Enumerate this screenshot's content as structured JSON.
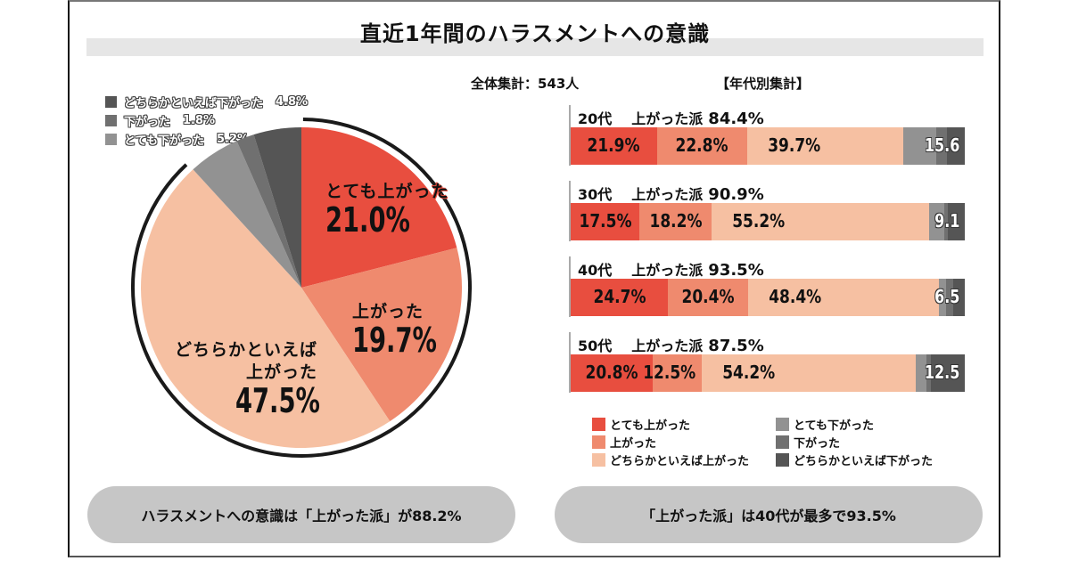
{
  "title": "直近1年間のハラスメントへの意識",
  "total_label": "全体集計：543人",
  "by_age_label": "【年代別集計】",
  "colors": {
    "very_up": "#e84e3f",
    "up": "#ef8a6e",
    "somewhat_up": "#f6c0a2",
    "very_down": "#929292",
    "down": "#707070",
    "somewhat_down": "#555555",
    "ring": "#1a1a1a",
    "pill": "#c6c6c6"
  },
  "chart_data": [
    {
      "type": "pie",
      "title": "全体集計：543人",
      "slices": [
        {
          "key": "very_up",
          "label": "とても上がった",
          "value": 21.0,
          "display": "21.0%"
        },
        {
          "key": "up",
          "label": "上がった",
          "value": 19.7,
          "display": "19.7%"
        },
        {
          "key": "somewhat_up",
          "label": "どちらかといえば上がった",
          "label_line1": "どちらかといえば",
          "label_line2": "上がった",
          "value": 47.5,
          "display": "47.5%"
        },
        {
          "key": "very_down",
          "label": "とても下がった",
          "value": 5.2,
          "display": "5.2%"
        },
        {
          "key": "down",
          "label": "下がった",
          "value": 1.8,
          "display": "1.8%"
        },
        {
          "key": "somewhat_down",
          "label": "どちらかといえば下がった",
          "value": 4.8,
          "display": "4.8%"
        }
      ],
      "legend_order": [
        "somewhat_down",
        "down",
        "very_down"
      ],
      "legend_placement": "top-left"
    },
    {
      "type": "bar",
      "orientation": "horizontal",
      "stacked": true,
      "title": "【年代別集計】",
      "categories": [
        "20代",
        "30代",
        "40代",
        "50代"
      ],
      "group_label": "上がった派",
      "group_totals": [
        "84.4%",
        "90.9%",
        "93.5%",
        "87.5%"
      ],
      "series": [
        {
          "key": "very_up",
          "name": "とても上がった",
          "values": [
            21.9,
            17.5,
            24.7,
            20.8
          ]
        },
        {
          "key": "up",
          "name": "上がった",
          "values": [
            22.8,
            18.2,
            20.4,
            12.5
          ]
        },
        {
          "key": "somewhat_up",
          "name": "どちらかといえば上がった",
          "values": [
            39.7,
            55.2,
            48.4,
            54.2
          ]
        },
        {
          "key": "very_down",
          "name": "とても下がった",
          "values": [
            8.4,
            3.8,
            1.8,
            2.7
          ]
        },
        {
          "key": "down",
          "name": "下がった",
          "values": [
            2.7,
            1.1,
            1.8,
            1.2
          ]
        },
        {
          "key": "somewhat_down",
          "name": "どちらかといえば下がった",
          "values": [
            4.5,
            4.2,
            2.9,
            8.6
          ]
        }
      ],
      "down_totals": [
        "15.6",
        "9.1",
        "6.5",
        "12.5"
      ],
      "xlim": [
        0,
        100
      ],
      "legend_placement": "bottom",
      "legend": [
        {
          "key": "very_up",
          "label": "とても上がった"
        },
        {
          "key": "up",
          "label": "上がった"
        },
        {
          "key": "somewhat_up",
          "label": "どちらかといえば上がった"
        },
        {
          "key": "very_down",
          "label": "とても下がった"
        },
        {
          "key": "down",
          "label": "下がった"
        },
        {
          "key": "somewhat_down",
          "label": "どちらかといえば下がった"
        }
      ]
    }
  ],
  "summary": {
    "left": "ハラスメントへの意識は「上がった派」が88.2%",
    "right": "「上がった派」は40代が最多で93.5%"
  }
}
